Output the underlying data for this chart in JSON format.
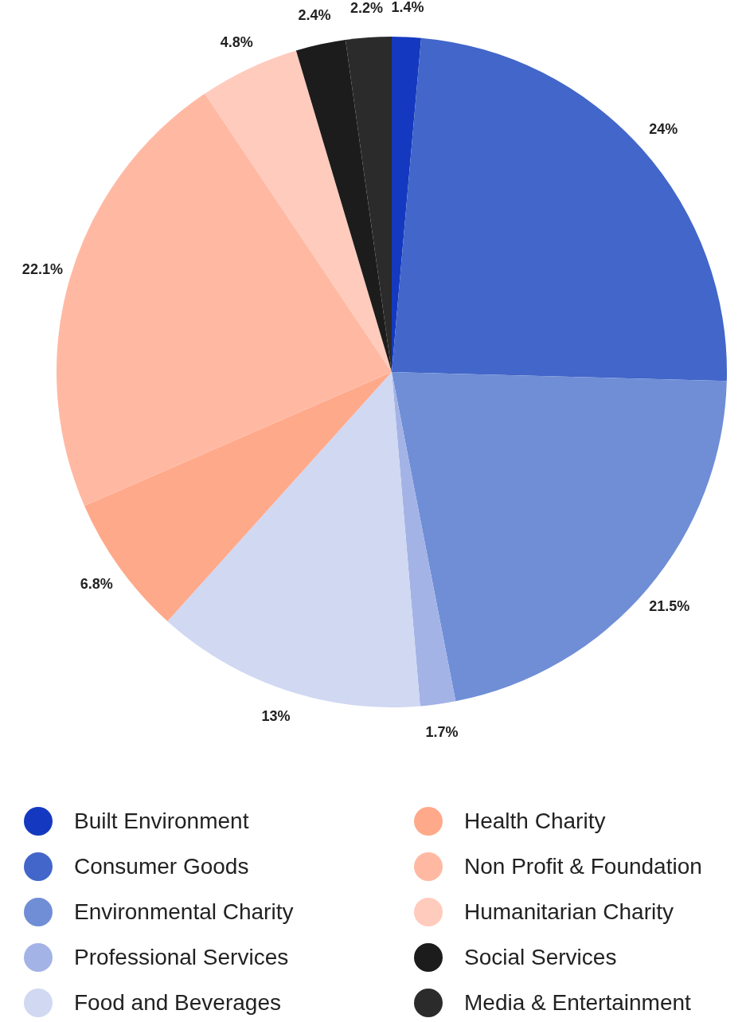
{
  "chart_data": {
    "type": "pie",
    "categories": [
      "Built Environment",
      "Consumer Goods",
      "Environmental Charity",
      "Professional Services",
      "Food and Beverages",
      "Health Charity",
      "Non Profit & Foundation",
      "Humanitarian Charity",
      "Social Services",
      "Media & Entertainment"
    ],
    "values": [
      1.4,
      24,
      21.5,
      1.7,
      13,
      6.8,
      22.1,
      4.8,
      2.4,
      2.2
    ],
    "colors": [
      "#1439c0",
      "#4266c9",
      "#6f8ed6",
      "#a3b3e6",
      "#d0d8f2",
      "#ffa98b",
      "#ffb9a3",
      "#ffcbbd",
      "#1c1c1c",
      "#2b2b2b"
    ],
    "value_labels": [
      "1.4%",
      "24%",
      "21.5%",
      "1.7%",
      "13%",
      "6.8%",
      "22.1%",
      "4.8%",
      "2.4%",
      "2.2%"
    ],
    "legend": "bottom"
  }
}
